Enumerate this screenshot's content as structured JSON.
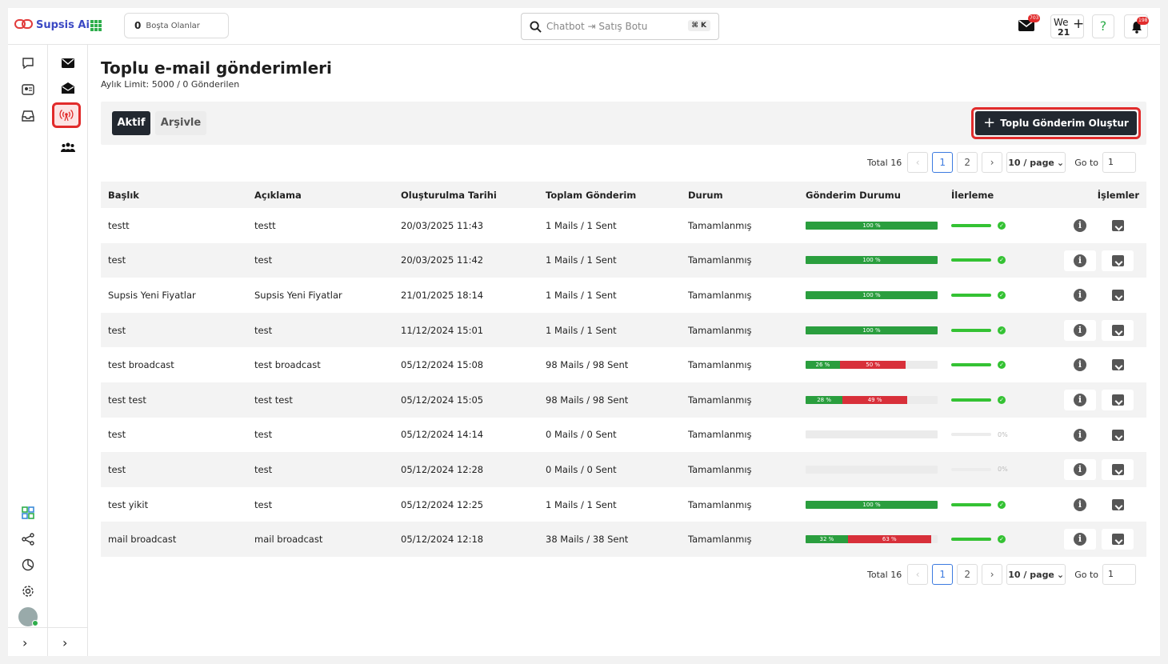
{
  "app": {
    "name": "Supsis Ai"
  },
  "topbar": {
    "idle_count": "0",
    "idle_label": "Boşta Olanlar",
    "search_placeholder": "Chatbot ⇥ Satış Botu",
    "search_shortcut": "⌘ K",
    "mail_badge": "703",
    "we_label": "We",
    "we_number": "21",
    "help_label": "?",
    "notif_badge": "198"
  },
  "page": {
    "title": "Toplu e-mail gönderimleri",
    "subtitle": "Aylık Limit: 5000 / 0 Gönderilen",
    "tabs": [
      "Aktif",
      "Arşivle"
    ],
    "create_button": "Toplu Gönderim Oluştur"
  },
  "pagination": {
    "total": "Total 16",
    "pages": [
      "1",
      "2"
    ],
    "active_page": "1",
    "page_size": "10 / page",
    "goto_label": "Go to",
    "goto_value": "1"
  },
  "table": {
    "columns": [
      "Başlık",
      "Açıklama",
      "Oluşturulma Tarihi",
      "Toplam Gönderim",
      "Durum",
      "Gönderim Durumu",
      "İlerleme",
      "İşlemler"
    ],
    "rows": [
      {
        "title": "testt",
        "desc": "testt",
        "date": "20/03/2025 11:43",
        "total": "1 Mails / 1 Sent",
        "status": "Tamamlanmış",
        "green": 100,
        "red": 0,
        "green_label": "100 %",
        "red_label": "",
        "progress": 100,
        "progress_label": ""
      },
      {
        "title": "test",
        "desc": "test",
        "date": "20/03/2025 11:42",
        "total": "1 Mails / 1 Sent",
        "status": "Tamamlanmış",
        "green": 100,
        "red": 0,
        "green_label": "100 %",
        "red_label": "",
        "progress": 100,
        "progress_label": ""
      },
      {
        "title": "Supsis Yeni Fiyatlar",
        "desc": "Supsis Yeni Fiyatlar",
        "date": "21/01/2025 18:14",
        "total": "1 Mails / 1 Sent",
        "status": "Tamamlanmış",
        "green": 100,
        "red": 0,
        "green_label": "100 %",
        "red_label": "",
        "progress": 100,
        "progress_label": ""
      },
      {
        "title": "test",
        "desc": "test",
        "date": "11/12/2024 15:01",
        "total": "1 Mails / 1 Sent",
        "status": "Tamamlanmış",
        "green": 100,
        "red": 0,
        "green_label": "100 %",
        "red_label": "",
        "progress": 100,
        "progress_label": ""
      },
      {
        "title": "test broadcast",
        "desc": "test broadcast",
        "date": "05/12/2024 15:08",
        "total": "98 Mails / 98 Sent",
        "status": "Tamamlanmış",
        "green": 26,
        "red": 50,
        "green_label": "26 %",
        "red_label": "50 %",
        "progress": 100,
        "progress_label": ""
      },
      {
        "title": "test test",
        "desc": "test test",
        "date": "05/12/2024 15:05",
        "total": "98 Mails / 98 Sent",
        "status": "Tamamlanmış",
        "green": 28,
        "red": 49,
        "green_label": "28 %",
        "red_label": "49 %",
        "progress": 100,
        "progress_label": ""
      },
      {
        "title": "test",
        "desc": "test",
        "date": "05/12/2024 14:14",
        "total": "0 Mails / 0 Sent",
        "status": "Tamamlanmış",
        "green": 0,
        "red": 0,
        "green_label": "",
        "red_label": "",
        "progress": 0,
        "progress_label": "0%"
      },
      {
        "title": "test",
        "desc": "test",
        "date": "05/12/2024 12:28",
        "total": "0 Mails / 0 Sent",
        "status": "Tamamlanmış",
        "green": 0,
        "red": 0,
        "green_label": "",
        "red_label": "",
        "progress": 0,
        "progress_label": "0%"
      },
      {
        "title": "test yikit",
        "desc": "test",
        "date": "05/12/2024 12:25",
        "total": "1 Mails / 1 Sent",
        "status": "Tamamlanmış",
        "green": 100,
        "red": 0,
        "green_label": "100 %",
        "red_label": "",
        "progress": 100,
        "progress_label": ""
      },
      {
        "title": "mail broadcast",
        "desc": "mail broadcast",
        "date": "05/12/2024 12:18",
        "total": "38 Mails / 38 Sent",
        "status": "Tamamlanmış",
        "green": 32,
        "red": 63,
        "green_label": "32 %",
        "red_label": "63 %",
        "progress": 100,
        "progress_label": ""
      }
    ]
  },
  "colors": {
    "accent": "#222830",
    "highlight": "#e12b2b",
    "success": "#2a9e3e",
    "danger": "#d8303a"
  }
}
